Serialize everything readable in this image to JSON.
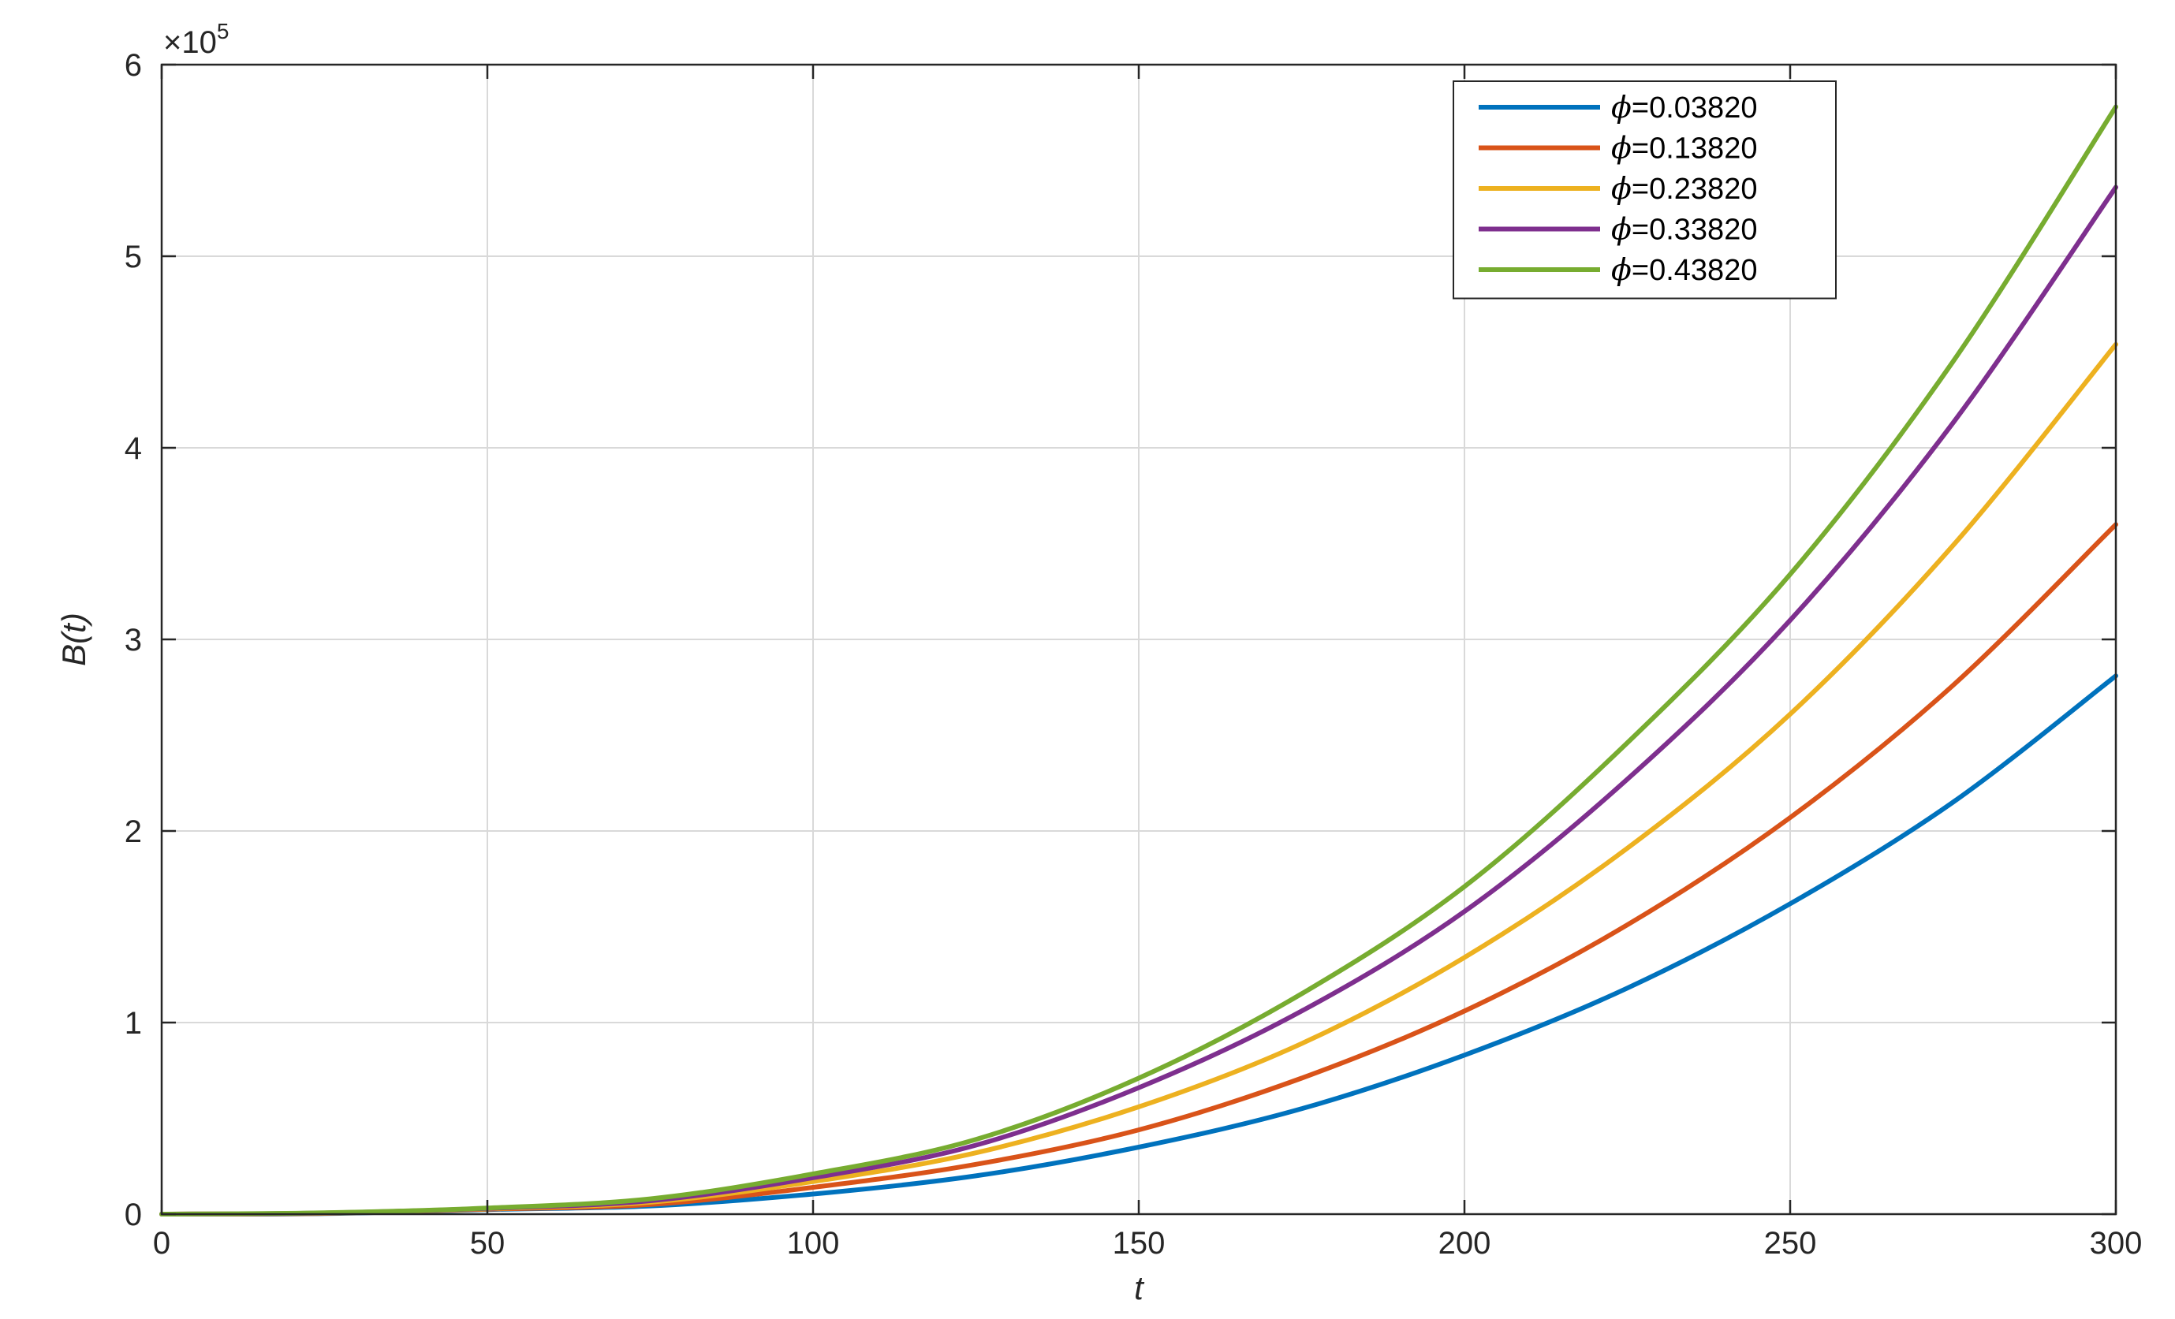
{
  "chart_data": {
    "type": "line",
    "title": "",
    "xlabel": "t",
    "ylabel": "B(t)",
    "xlim": [
      0,
      300
    ],
    "ylim": [
      0,
      600000
    ],
    "y_exponent_label": "×10",
    "y_exponent_power": "5",
    "x_ticks": [
      0,
      50,
      100,
      150,
      200,
      250,
      300
    ],
    "x_tick_labels": [
      "0",
      "50",
      "100",
      "150",
      "200",
      "250",
      "300"
    ],
    "y_ticks": [
      0,
      100000,
      200000,
      300000,
      400000,
      500000,
      600000
    ],
    "y_tick_labels": [
      "0",
      "1",
      "2",
      "3",
      "4",
      "5",
      "6"
    ],
    "grid": true,
    "legend_position": "top-right",
    "x": [
      0,
      25,
      50,
      75,
      100,
      125,
      150,
      175,
      200,
      225,
      250,
      275,
      300
    ],
    "series": [
      {
        "name": "=0.03820",
        "name_symbol": "ϕ",
        "color": "#0072BD",
        "values": [
          0,
          300,
          2400,
          4300,
          10500,
          20000,
          35000,
          55000,
          83000,
          118000,
          162000,
          215000,
          281000
        ]
      },
      {
        "name": "=0.13820",
        "name_symbol": "ϕ",
        "color": "#D95319",
        "values": [
          0,
          400,
          2600,
          5000,
          14000,
          26000,
          44000,
          71000,
          106000,
          151000,
          207000,
          276000,
          360000
        ]
      },
      {
        "name": "=0.23820",
        "name_symbol": "ϕ",
        "color": "#EDB120",
        "values": [
          0,
          500,
          2800,
          6200,
          17000,
          32000,
          56000,
          89000,
          134000,
          191000,
          261000,
          349000,
          454000
        ]
      },
      {
        "name": "=0.33820",
        "name_symbol": "ϕ",
        "color": "#7E2F8E",
        "values": [
          0,
          600,
          3000,
          7000,
          19000,
          36000,
          66000,
          106000,
          158000,
          227000,
          310000,
          413000,
          536000
        ]
      },
      {
        "name": "=0.43820",
        "name_symbol": "ϕ",
        "color": "#77AC30",
        "values": [
          0,
          700,
          3200,
          8000,
          21000,
          39000,
          71000,
          115000,
          171000,
          246000,
          334000,
          445000,
          578000
        ]
      }
    ]
  }
}
